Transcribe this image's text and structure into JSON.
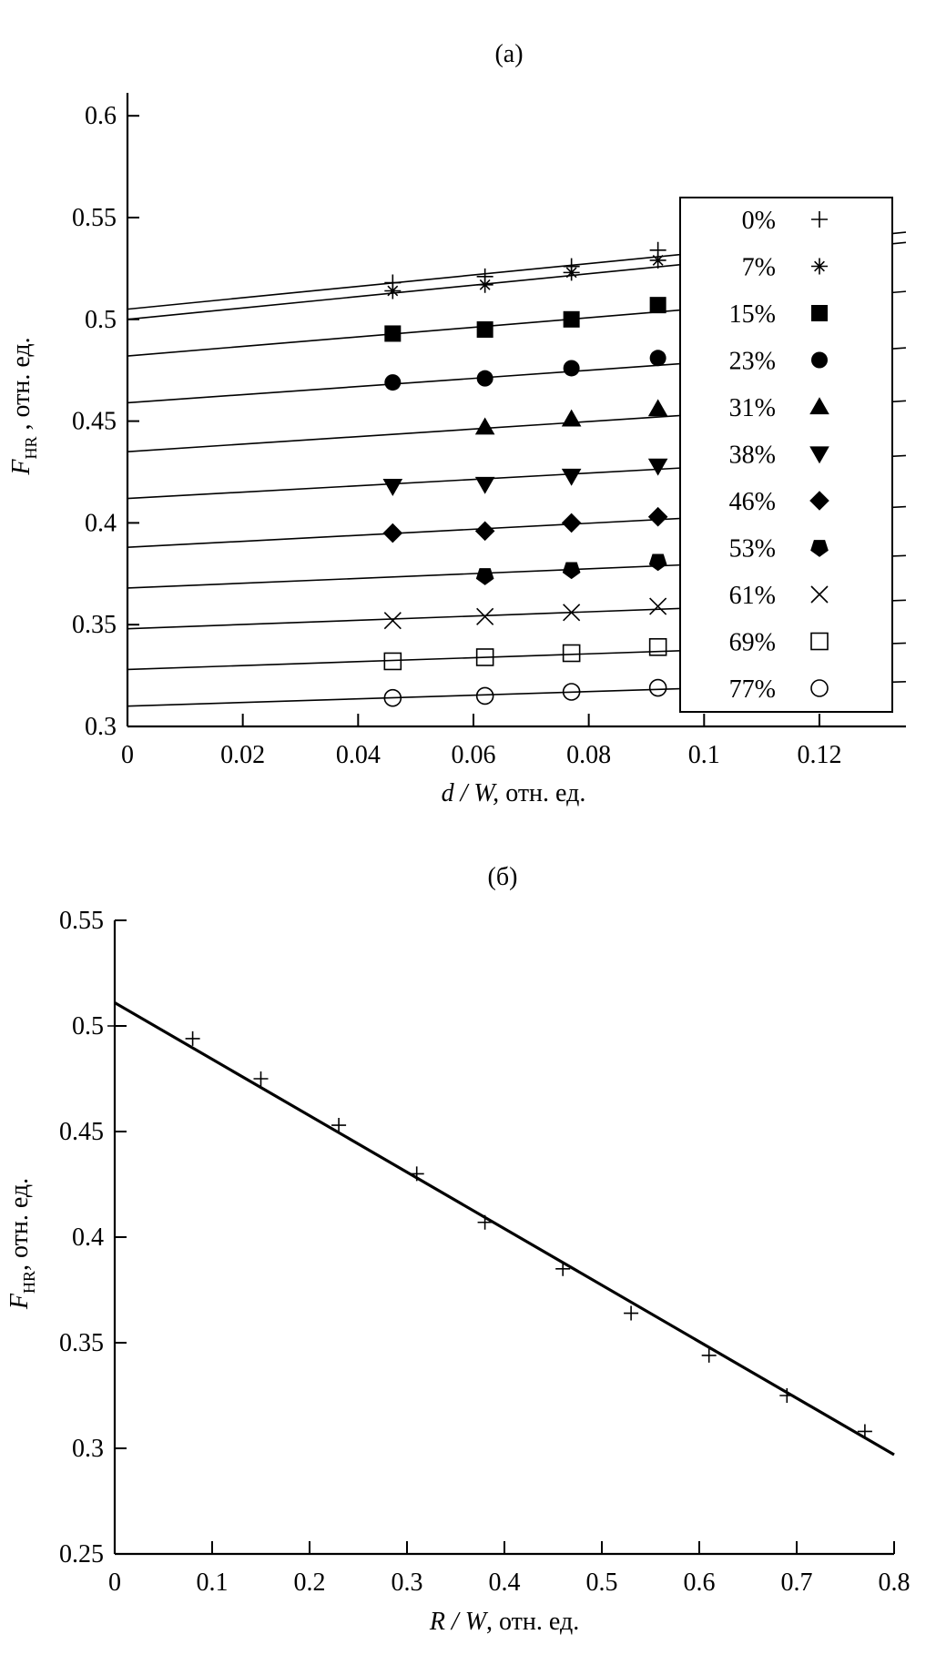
{
  "chart_data": [
    {
      "type": "scatter",
      "panel_title": "(a)",
      "xlabel": {
        "italic": "d / W,",
        "rest": " отн. ед."
      },
      "ylabel": {
        "main": "F",
        "sub": "HR",
        "rest": " , отн. ед."
      },
      "xlim": [
        0,
        0.135
      ],
      "ylim": [
        0.3,
        0.61
      ],
      "xticks": [
        "0",
        "0.02",
        "0.04",
        "0.06",
        "0.08",
        "0.1",
        "0.12"
      ],
      "xtick_values": [
        0,
        0.02,
        0.04,
        0.06,
        0.08,
        0.1,
        0.12
      ],
      "yticks": [
        "0.3",
        "0.35",
        "0.4",
        "0.45",
        "0.5",
        "0.55",
        "0.6"
      ],
      "ytick_values": [
        0.3,
        0.35,
        0.4,
        0.45,
        0.5,
        0.55,
        0.6
      ],
      "grid": false,
      "legend_placement": "right",
      "series": [
        {
          "name": "0%",
          "marker": "plus",
          "x": [
            0.046,
            0.062,
            0.077,
            0.092
          ],
          "y": [
            0.518,
            0.521,
            0.526,
            0.534
          ],
          "fit": {
            "intercept": 0.505,
            "slope": 0.28
          }
        },
        {
          "name": "7%",
          "marker": "asterisk",
          "x": [
            0.046,
            0.062,
            0.077,
            0.092
          ],
          "y": [
            0.514,
            0.517,
            0.523,
            0.529
          ],
          "fit": {
            "intercept": 0.5,
            "slope": 0.28
          }
        },
        {
          "name": "15%",
          "marker": "filled-square",
          "x": [
            0.046,
            0.062,
            0.077,
            0.092
          ],
          "y": [
            0.493,
            0.495,
            0.5,
            0.507
          ],
          "fit": {
            "intercept": 0.482,
            "slope": 0.235
          }
        },
        {
          "name": "23%",
          "marker": "filled-circle",
          "x": [
            0.046,
            0.062,
            0.077,
            0.092
          ],
          "y": [
            0.469,
            0.471,
            0.476,
            0.481
          ],
          "fit": {
            "intercept": 0.459,
            "slope": 0.2
          }
        },
        {
          "name": "31%",
          "marker": "triangle-up",
          "x": [
            0.062,
            0.077,
            0.092
          ],
          "y": [
            0.447,
            0.451,
            0.456
          ],
          "fit": {
            "intercept": 0.435,
            "slope": 0.185
          }
        },
        {
          "name": "38%",
          "marker": "triangle-down",
          "x": [
            0.046,
            0.062,
            0.077,
            0.092
          ],
          "y": [
            0.418,
            0.419,
            0.423,
            0.428
          ],
          "fit": {
            "intercept": 0.412,
            "slope": 0.156
          }
        },
        {
          "name": "46%",
          "marker": "filled-diamond",
          "x": [
            0.046,
            0.062,
            0.077,
            0.092
          ],
          "y": [
            0.395,
            0.396,
            0.4,
            0.403
          ],
          "fit": {
            "intercept": 0.388,
            "slope": 0.148
          }
        },
        {
          "name": "53%",
          "marker": "filled-pentagon",
          "x": [
            0.062,
            0.077,
            0.092
          ],
          "y": [
            0.374,
            0.377,
            0.381
          ],
          "fit": {
            "intercept": 0.368,
            "slope": 0.118
          }
        },
        {
          "name": "61%",
          "marker": "cross",
          "x": [
            0.046,
            0.062,
            0.077,
            0.092
          ],
          "y": [
            0.352,
            0.354,
            0.356,
            0.359
          ],
          "fit": {
            "intercept": 0.348,
            "slope": 0.104
          }
        },
        {
          "name": "69%",
          "marker": "open-square",
          "x": [
            0.046,
            0.062,
            0.077,
            0.092
          ],
          "y": [
            0.332,
            0.334,
            0.336,
            0.339
          ],
          "fit": {
            "intercept": 0.328,
            "slope": 0.096
          }
        },
        {
          "name": "77%",
          "marker": "open-circle",
          "x": [
            0.046,
            0.062,
            0.077,
            0.092
          ],
          "y": [
            0.314,
            0.315,
            0.317,
            0.319
          ],
          "fit": {
            "intercept": 0.31,
            "slope": 0.089
          }
        }
      ]
    },
    {
      "type": "scatter",
      "panel_title": "(б)",
      "xlabel": {
        "italic": "R / W",
        "rest": ", отн. ед."
      },
      "ylabel": {
        "main": "F",
        "sub": "HR",
        "rest": ", отн. ед."
      },
      "xlim": [
        0,
        0.8
      ],
      "ylim": [
        0.25,
        0.55
      ],
      "xticks": [
        "0",
        "0.1",
        "0.2",
        "0.3",
        "0.4",
        "0.5",
        "0.6",
        "0.7",
        "0.8"
      ],
      "xtick_values": [
        0,
        0.1,
        0.2,
        0.3,
        0.4,
        0.5,
        0.6,
        0.7,
        0.8
      ],
      "yticks": [
        "0.25",
        "0.3",
        "0.35",
        "0.4",
        "0.45",
        "0.5",
        "0.55"
      ],
      "ytick_values": [
        0.25,
        0.3,
        0.35,
        0.4,
        0.45,
        0.5,
        0.55
      ],
      "grid": false,
      "series": [
        {
          "marker": "plus",
          "x": [
            0,
            0.08,
            0.15,
            0.23,
            0.31,
            0.38,
            0.46,
            0.53,
            0.61,
            0.69,
            0.77
          ],
          "y": [
            0.5,
            0.494,
            0.475,
            0.453,
            0.43,
            0.407,
            0.385,
            0.364,
            0.344,
            0.325,
            0.308
          ],
          "fit": {
            "x": [
              0,
              0.8
            ],
            "y": [
              0.511,
              0.297
            ]
          }
        }
      ]
    }
  ]
}
